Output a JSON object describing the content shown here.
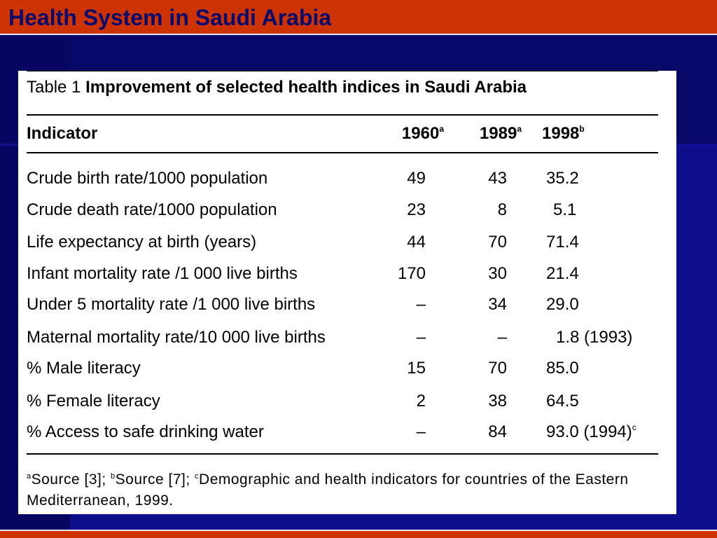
{
  "slide": {
    "title": "Health System in Saudi Arabia"
  },
  "table": {
    "caption_number": "Table 1",
    "caption_text": "Improvement of selected health indices in Saudi Arabia",
    "headers": {
      "indicator": "Indicator",
      "col1": "1960",
      "col1_note": "a",
      "col2": "1989",
      "col2_note": "a",
      "col3": "1998",
      "col3_note": "b"
    },
    "rows": [
      {
        "indicator": "Crude birth rate/1000 population",
        "v1960": "49",
        "v1989": "43",
        "v1998": "35.2",
        "v1998_note": ""
      },
      {
        "indicator": "Crude death rate/1000 population",
        "v1960": "23",
        "v1989": "8",
        "v1998": "5.1",
        "v1998_note": ""
      },
      {
        "indicator": "Life expectancy at birth (years)",
        "v1960": "44",
        "v1989": "70",
        "v1998": "71.4",
        "v1998_note": ""
      },
      {
        "indicator": "Infant mortality rate /1 000 live births",
        "v1960": "170",
        "v1989": "30",
        "v1998": "21.4",
        "v1998_note": ""
      },
      {
        "indicator": "Under 5 mortality rate /1 000 live births",
        "v1960": "–",
        "v1989": "34",
        "v1998": "29.0",
        "v1998_note": ""
      },
      {
        "indicator": "Maternal mortality rate/10 000 live births",
        "v1960": "–",
        "v1989": "–",
        "v1998": "1.8 (1993)",
        "v1998_note": ""
      },
      {
        "indicator": "% Male literacy",
        "v1960": "15",
        "v1989": "70",
        "v1998": "85.0",
        "v1998_note": ""
      },
      {
        "indicator": "% Female literacy",
        "v1960": "2",
        "v1989": "38",
        "v1998": "64.5",
        "v1998_note": ""
      },
      {
        "indicator": "% Access to safe drinking water",
        "v1960": "–",
        "v1989": "84",
        "v1998": "93.0 (1994)",
        "v1998_note": "c"
      }
    ],
    "footnote": {
      "a_mark": "a",
      "a_text": "Source [3]; ",
      "b_mark": "b",
      "b_text": "Source [7]; ",
      "c_mark": "c",
      "c_text": "Demographic and health indicators for countries of the Eastern Mediterranean, 1999."
    }
  }
}
